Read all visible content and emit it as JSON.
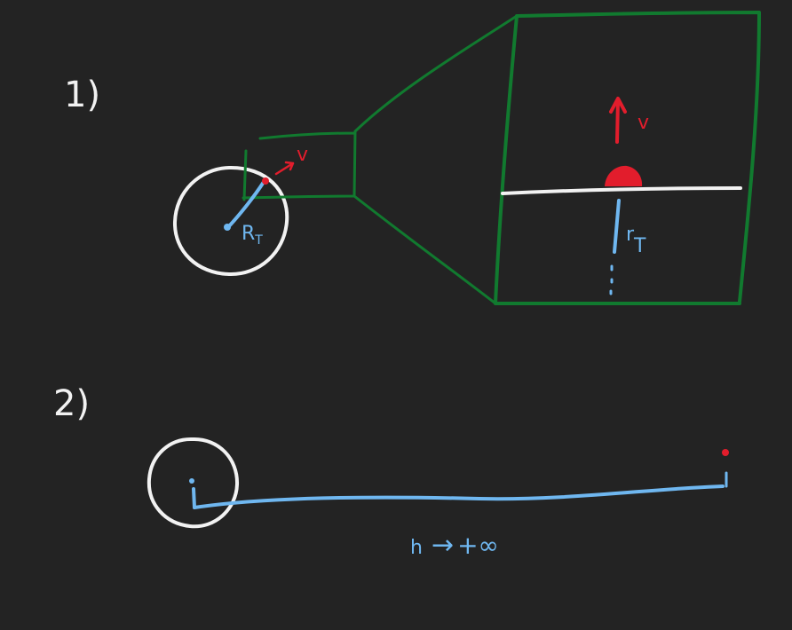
{
  "colors": {
    "background": "#232323",
    "white": "#f2f2f2",
    "green": "#117a2f",
    "blue": "#6fb7f0",
    "red": "#e21d2c"
  },
  "diagram_1": {
    "label": "1)",
    "radius_label": "R",
    "radius_subscript": "T",
    "velocity_label": "v",
    "zoom_velocity_label": "v",
    "zoom_radius_label": "r",
    "zoom_radius_subscript": "T"
  },
  "diagram_2": {
    "label": "2)",
    "distance_label": "h",
    "distance_arrow": "→",
    "distance_limit": "+∞"
  }
}
